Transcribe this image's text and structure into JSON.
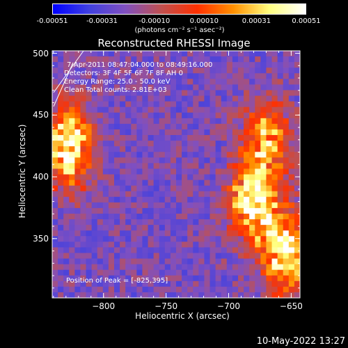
{
  "chart_data": {
    "type": "heatmap",
    "title": "Reconstructed RHESSI Image",
    "xlabel": "Heliocentric X (arcsec)",
    "ylabel": "Heliocentric Y (arcsec)",
    "xlim": [
      -841,
      -643
    ],
    "ylim": [
      302,
      502
    ],
    "x_ticks": [
      -800,
      -750,
      -700,
      -650
    ],
    "x_tick_labels": [
      "−800",
      "−750",
      "−700",
      "−650"
    ],
    "y_ticks": [
      350,
      400,
      450,
      500
    ],
    "y_tick_labels": [
      "350",
      "400",
      "450",
      "500"
    ],
    "colorbar": {
      "min": -0.00051,
      "max": 0.00051,
      "ticks": [
        -0.00051,
        -0.00031,
        -0.0001,
        0.0001,
        0.00031,
        0.00051
      ],
      "tick_labels": [
        "-0.00051",
        "-0.00031",
        "-0.00010",
        "0.00010",
        "0.00031",
        "0.00051"
      ],
      "unit_label": "(photons cm⁻² s⁻¹ asec⁻²)",
      "colors": [
        "#0000ff",
        "#4040e0",
        "#8050c0",
        "#c05050",
        "#ff3000",
        "#ff9000",
        "#ffff80",
        "#ffffff"
      ]
    },
    "annotations": [
      "7-Apr-2011 08:47:04.000 to 08:49:16.000",
      "Detectors: 3F 4F 5F 6F 7F 8F AH 0",
      "Energy Range: 25.0 - 50.0 keV",
      "Clean     Total counts: 2.81E+03"
    ],
    "peak_label": "Position of Peak = [-825,395]",
    "peak": [
      -825,
      395
    ],
    "background_level": "low negative/near-zero over center",
    "bright_regions": [
      {
        "x": -828,
        "y": 425,
        "level": "high"
      },
      {
        "x": -670,
        "y": 430,
        "level": "medium"
      },
      {
        "x": -680,
        "y": 380,
        "level": "high"
      },
      {
        "x": -655,
        "y": 340,
        "level": "high"
      }
    ],
    "grid": false
  },
  "footer": {
    "timestamp": "10-May-2022 13:27"
  }
}
